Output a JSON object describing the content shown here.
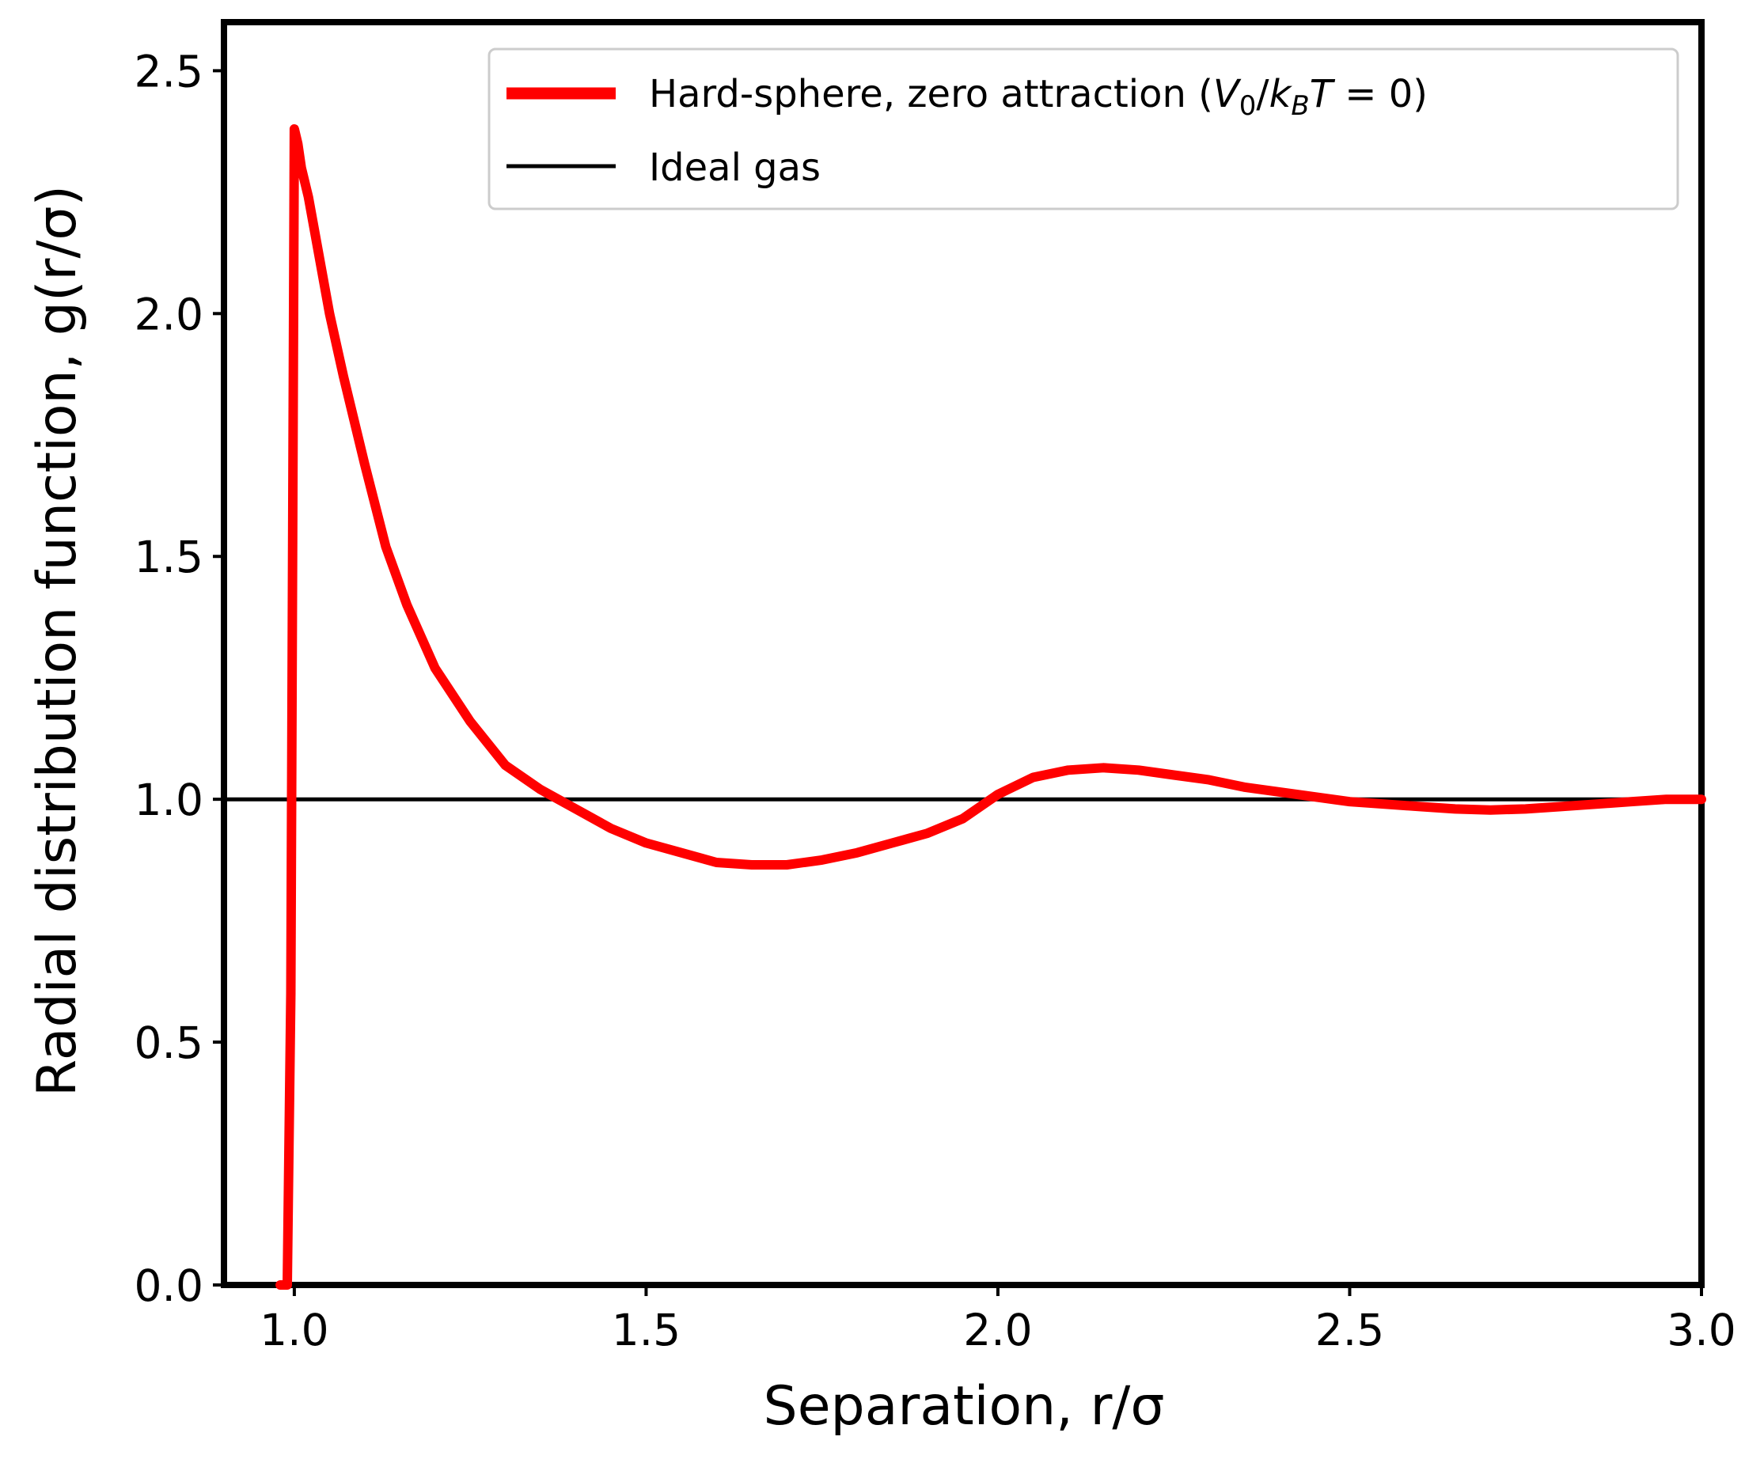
{
  "chart_data": {
    "type": "line",
    "xlabel": "Separation, r/σ",
    "ylabel": "Radial distribution function, g(r/σ)",
    "xlim": [
      0.9,
      3.0
    ],
    "ylim": [
      0.0,
      2.6
    ],
    "xticks": [
      1.0,
      1.5,
      2.0,
      2.5,
      3.0
    ],
    "xtick_labels": [
      "1.0",
      "1.5",
      "2.0",
      "2.5",
      "3.0"
    ],
    "yticks": [
      0.0,
      0.5,
      1.0,
      1.5,
      2.0,
      2.5
    ],
    "ytick_labels": [
      "0.0",
      "0.5",
      "1.0",
      "1.5",
      "2.0",
      "2.5"
    ],
    "grid": false,
    "legend_position": "top-right",
    "series": [
      {
        "name": "Hard-sphere, zero attraction (V0/kBT = 0)",
        "color": "#ff0000",
        "x": [
          0.98,
          0.99,
          0.995,
          1.0,
          1.005,
          1.01,
          1.02,
          1.03,
          1.05,
          1.07,
          1.1,
          1.13,
          1.16,
          1.2,
          1.25,
          1.3,
          1.35,
          1.4,
          1.45,
          1.5,
          1.55,
          1.6,
          1.65,
          1.7,
          1.75,
          1.8,
          1.85,
          1.9,
          1.95,
          2.0,
          2.05,
          2.1,
          2.15,
          2.2,
          2.25,
          2.3,
          2.35,
          2.4,
          2.45,
          2.5,
          2.55,
          2.6,
          2.65,
          2.7,
          2.75,
          2.8,
          2.85,
          2.9,
          2.95,
          3.0
        ],
        "y": [
          0.0,
          0.0,
          0.6,
          2.38,
          2.35,
          2.3,
          2.24,
          2.16,
          2.0,
          1.87,
          1.69,
          1.52,
          1.4,
          1.27,
          1.16,
          1.07,
          1.02,
          0.98,
          0.94,
          0.91,
          0.89,
          0.87,
          0.865,
          0.865,
          0.875,
          0.89,
          0.91,
          0.93,
          0.96,
          1.01,
          1.045,
          1.06,
          1.065,
          1.06,
          1.05,
          1.04,
          1.025,
          1.015,
          1.005,
          0.995,
          0.99,
          0.985,
          0.98,
          0.978,
          0.98,
          0.985,
          0.99,
          0.995,
          1.0,
          1.0
        ]
      },
      {
        "name": "Ideal gas",
        "color": "#000000",
        "x": [
          0.9,
          3.0
        ],
        "y": [
          1.0,
          1.0
        ]
      }
    ],
    "legend": {
      "entries": [
        {
          "prefix": "Hard-sphere, zero attraction (",
          "math": {
            "V": "V",
            "V_sub": "0",
            "slash": "/",
            "k": "k",
            "k_sub": "B",
            "T": "T",
            "eq": " = 0"
          },
          "suffix": ")",
          "color": "#ff0000"
        },
        {
          "label": "Ideal gas",
          "color": "#000000"
        }
      ]
    }
  }
}
